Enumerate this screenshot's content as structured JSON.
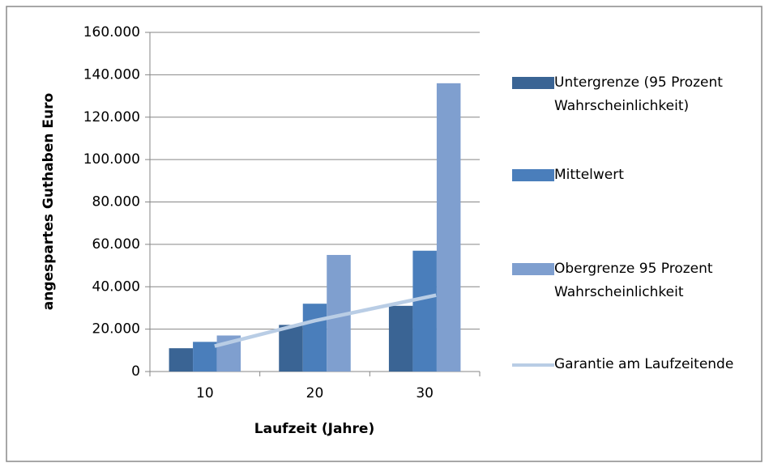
{
  "chart_data": {
    "type": "bar",
    "categories": [
      "10",
      "20",
      "30"
    ],
    "xlabel": "Laufzeit (Jahre)",
    "ylabel": "angespartes Guthaben Euro",
    "ylim": [
      0,
      160000
    ],
    "yticks": [
      0,
      {
        "value": 20000,
        "label": "20.000"
      },
      {
        "value": 40000,
        "label": "40.000"
      },
      {
        "value": 60000,
        "label": "60.000"
      },
      {
        "value": 80000,
        "label": "80.000"
      },
      {
        "value": 100000,
        "label": "100.000"
      },
      {
        "value": 120000,
        "label": "120.000"
      },
      {
        "value": 140000,
        "label": "140.000"
      },
      {
        "value": 160000,
        "label": "160.000"
      }
    ],
    "grid": true,
    "series": [
      {
        "name": "Untergrenze (95 Prozent Wahrscheinlichkeit)",
        "color": "#3a6494",
        "values": [
          11000,
          22000,
          31000
        ]
      },
      {
        "name": "Mittelwert",
        "color": "#4a7ebb",
        "values": [
          14000,
          32000,
          57000
        ]
      },
      {
        "name": "Obergrenze 95 Prozent Wahrscheinlichkeit",
        "color": "#7f9fcf",
        "values": [
          17000,
          55000,
          136000
        ]
      },
      {
        "name": "Garantie am Laufzeitende",
        "type": "line",
        "color": "#b9cde5",
        "values": [
          12000,
          24000,
          36000
        ]
      }
    ]
  }
}
